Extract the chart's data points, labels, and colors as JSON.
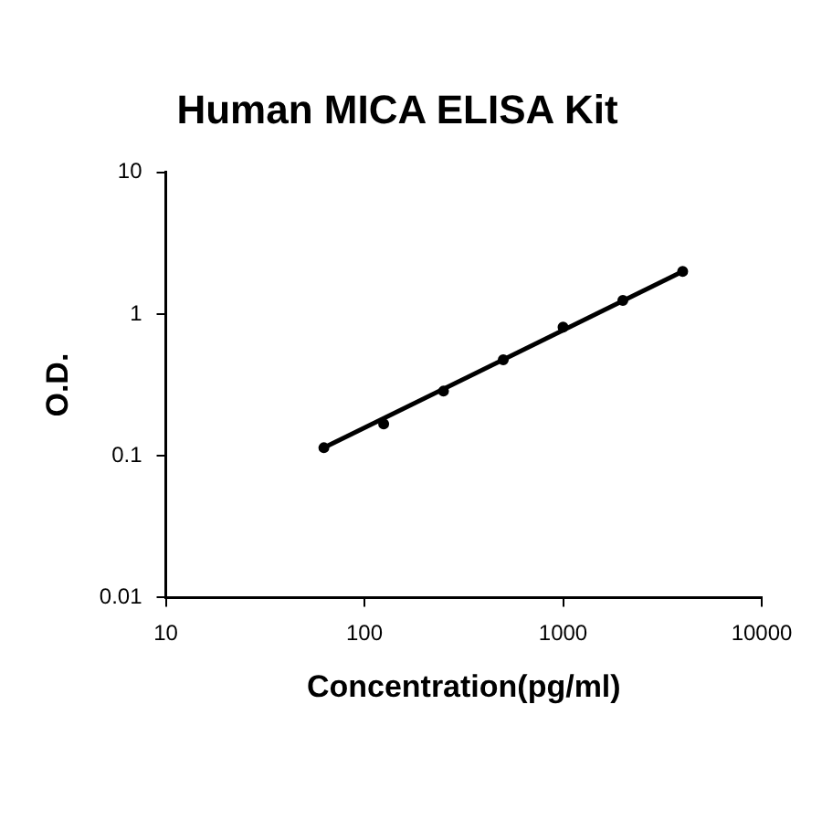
{
  "chart_data": {
    "type": "scatter",
    "title": "Human MICA ELISA Kit",
    "xlabel": "Concentration(pg/ml)",
    "ylabel": "O.D.",
    "log": "xy",
    "grid": false,
    "legend": false,
    "xlim": [
      10,
      10000
    ],
    "xticks": [
      10,
      100,
      1000,
      10000
    ],
    "ylim": [
      0.01,
      10
    ],
    "yticks": [
      0.01,
      0.1,
      1,
      10
    ],
    "series": [
      {
        "marker": "circle",
        "color": "#000000",
        "x": [
          62.5,
          125,
          250,
          500,
          1000,
          2000,
          4000
        ],
        "values": [
          0.114,
          0.168,
          0.286,
          0.476,
          0.81,
          1.25,
          2.0
        ]
      },
      {
        "type": "line",
        "marker": "none",
        "color": "#000000",
        "line_style": "solid",
        "x": [
          62.5,
          4000
        ],
        "values": [
          0.114,
          2.0
        ]
      }
    ]
  }
}
